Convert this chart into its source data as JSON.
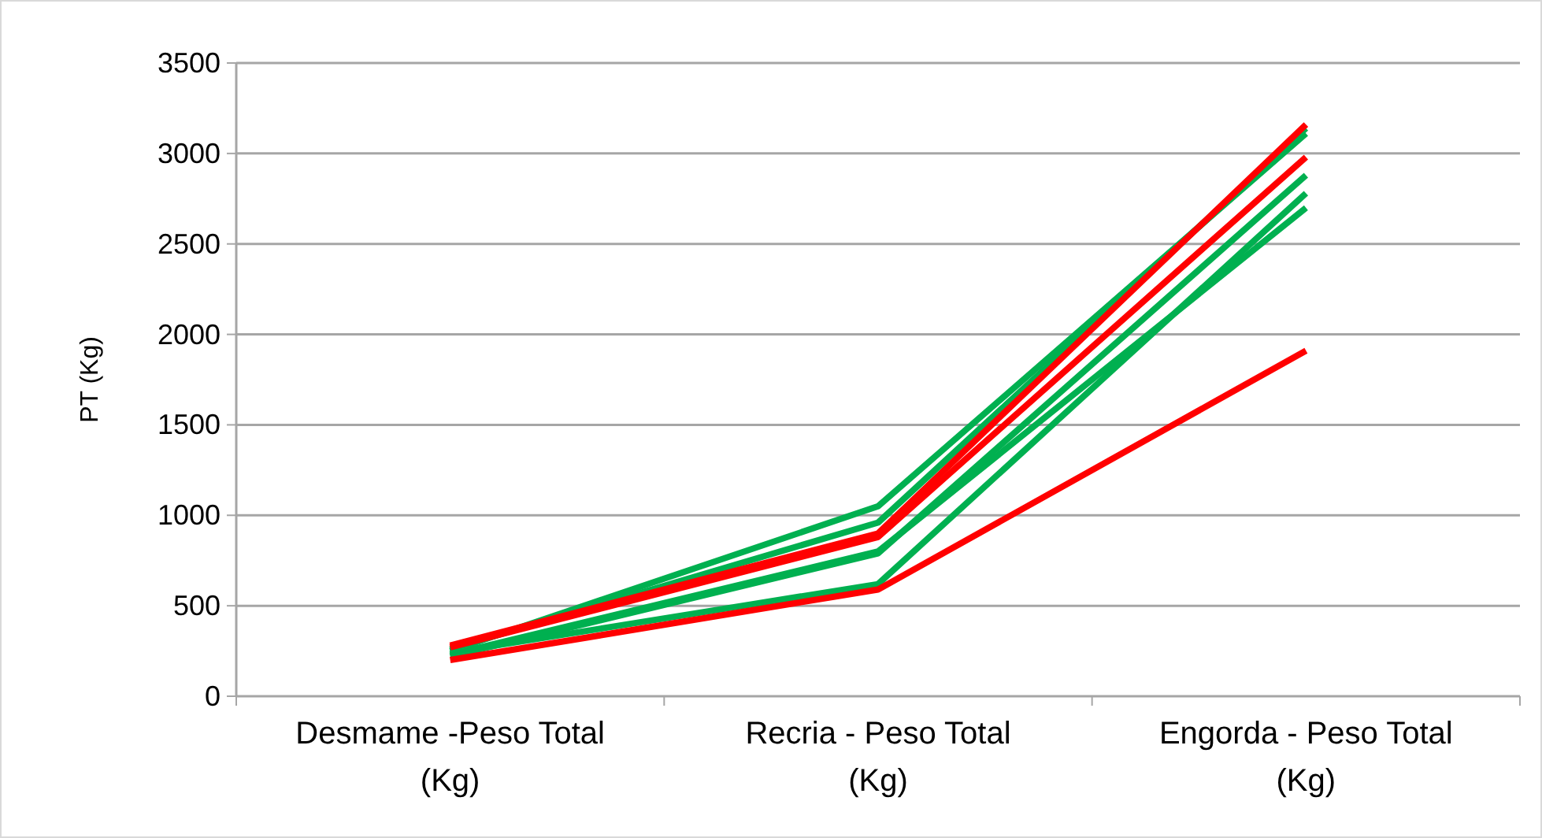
{
  "chart_data": {
    "type": "line",
    "ylabel": "PT (Kg)",
    "categories": [
      "Desmame -Peso Total (Kg)",
      "Recria - Peso Total (Kg)",
      "Engorda - Peso Total (Kg)"
    ],
    "series": [
      {
        "color": "#00b050",
        "values": [
          250,
          1050,
          3110
        ]
      },
      {
        "color": "#00b050",
        "values": [
          260,
          960,
          3140
        ]
      },
      {
        "color": "#00b050",
        "values": [
          230,
          800,
          2700
        ]
      },
      {
        "color": "#00b050",
        "values": [
          220,
          790,
          2880
        ]
      },
      {
        "color": "#00b050",
        "values": [
          240,
          620,
          2780
        ]
      },
      {
        "color": "#ff0000",
        "values": [
          280,
          900,
          3160
        ]
      },
      {
        "color": "#ff0000",
        "values": [
          270,
          880,
          2980
        ]
      },
      {
        "color": "#ff0000",
        "values": [
          200,
          590,
          1910
        ]
      }
    ],
    "ylim": [
      0,
      3500
    ],
    "yticks": [
      0,
      500,
      1000,
      1500,
      2000,
      2500,
      3000,
      3500
    ],
    "grid": "y",
    "marker": "none",
    "line_style": "solid"
  }
}
